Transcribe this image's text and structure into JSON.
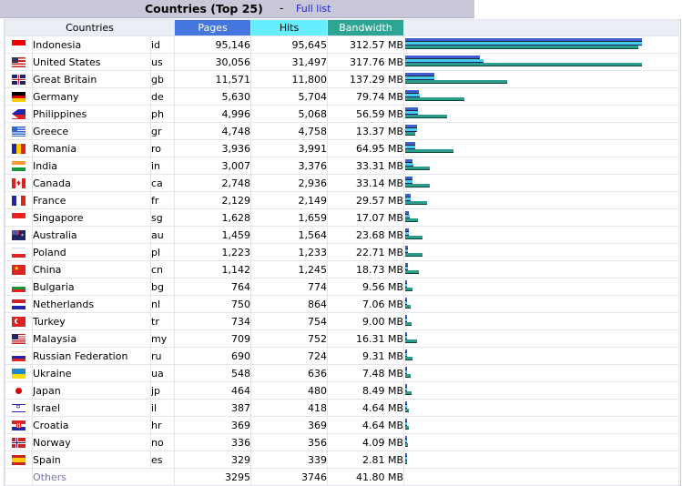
{
  "header": {
    "title": "Countries (Top 25)",
    "separator": "-",
    "full_list_link": "Full list"
  },
  "columns": {
    "countries": "Countries",
    "pages": "Pages",
    "hits": "Hits",
    "bandwidth": "Bandwidth"
  },
  "colors": {
    "pages": "#4477dd",
    "hits": "#66eeff",
    "bandwidth": "#2ea495"
  },
  "rows": [
    {
      "name": "Indonesia",
      "code": "id",
      "pages": "95,146",
      "hits": "95,645",
      "bandwidth": "312.57 MB",
      "flag": "indonesia-flag-icon",
      "p": 95146,
      "h": 95645,
      "b": 312.57
    },
    {
      "name": "United States",
      "code": "us",
      "pages": "30,056",
      "hits": "31,497",
      "bandwidth": "317.76 MB",
      "flag": "usa-flag-icon",
      "p": 30056,
      "h": 31497,
      "b": 317.76
    },
    {
      "name": "Great Britain",
      "code": "gb",
      "pages": "11,571",
      "hits": "11,800",
      "bandwidth": "137.29 MB",
      "flag": "uk-flag-icon",
      "p": 11571,
      "h": 11800,
      "b": 137.29
    },
    {
      "name": "Germany",
      "code": "de",
      "pages": "5,630",
      "hits": "5,704",
      "bandwidth": "79.74 MB",
      "flag": "germany-flag-icon",
      "p": 5630,
      "h": 5704,
      "b": 79.74
    },
    {
      "name": "Philippines",
      "code": "ph",
      "pages": "4,996",
      "hits": "5,068",
      "bandwidth": "56.59 MB",
      "flag": "philippines-flag-icon",
      "p": 4996,
      "h": 5068,
      "b": 56.59
    },
    {
      "name": "Greece",
      "code": "gr",
      "pages": "4,748",
      "hits": "4,758",
      "bandwidth": "13.37 MB",
      "flag": "greece-flag-icon",
      "p": 4748,
      "h": 4758,
      "b": 13.37
    },
    {
      "name": "Romania",
      "code": "ro",
      "pages": "3,936",
      "hits": "3,991",
      "bandwidth": "64.95 MB",
      "flag": "romania-flag-icon",
      "p": 3936,
      "h": 3991,
      "b": 64.95
    },
    {
      "name": "India",
      "code": "in",
      "pages": "3,007",
      "hits": "3,376",
      "bandwidth": "33.31 MB",
      "flag": "india-flag-icon",
      "p": 3007,
      "h": 3376,
      "b": 33.31
    },
    {
      "name": "Canada",
      "code": "ca",
      "pages": "2,748",
      "hits": "2,936",
      "bandwidth": "33.14 MB",
      "flag": "canada-flag-icon",
      "p": 2748,
      "h": 2936,
      "b": 33.14
    },
    {
      "name": "France",
      "code": "fr",
      "pages": "2,129",
      "hits": "2,149",
      "bandwidth": "29.57 MB",
      "flag": "france-flag-icon",
      "p": 2129,
      "h": 2149,
      "b": 29.57
    },
    {
      "name": "Singapore",
      "code": "sg",
      "pages": "1,628",
      "hits": "1,659",
      "bandwidth": "17.07 MB",
      "flag": "singapore-flag-icon",
      "p": 1628,
      "h": 1659,
      "b": 17.07
    },
    {
      "name": "Australia",
      "code": "au",
      "pages": "1,459",
      "hits": "1,564",
      "bandwidth": "23.68 MB",
      "flag": "australia-flag-icon",
      "p": 1459,
      "h": 1564,
      "b": 23.68
    },
    {
      "name": "Poland",
      "code": "pl",
      "pages": "1,223",
      "hits": "1,233",
      "bandwidth": "22.71 MB",
      "flag": "poland-flag-icon",
      "p": 1223,
      "h": 1233,
      "b": 22.71
    },
    {
      "name": "China",
      "code": "cn",
      "pages": "1,142",
      "hits": "1,245",
      "bandwidth": "18.73 MB",
      "flag": "china-flag-icon",
      "p": 1142,
      "h": 1245,
      "b": 18.73
    },
    {
      "name": "Bulgaria",
      "code": "bg",
      "pages": "764",
      "hits": "774",
      "bandwidth": "9.56 MB",
      "flag": "bulgaria-flag-icon",
      "p": 764,
      "h": 774,
      "b": 9.56
    },
    {
      "name": "Netherlands",
      "code": "nl",
      "pages": "750",
      "hits": "864",
      "bandwidth": "7.06 MB",
      "flag": "netherlands-flag-icon",
      "p": 750,
      "h": 864,
      "b": 7.06
    },
    {
      "name": "Turkey",
      "code": "tr",
      "pages": "734",
      "hits": "754",
      "bandwidth": "9.00 MB",
      "flag": "turkey-flag-icon",
      "p": 734,
      "h": 754,
      "b": 9.0
    },
    {
      "name": "Malaysia",
      "code": "my",
      "pages": "709",
      "hits": "752",
      "bandwidth": "16.31 MB",
      "flag": "malaysia-flag-icon",
      "p": 709,
      "h": 752,
      "b": 16.31
    },
    {
      "name": "Russian Federation",
      "code": "ru",
      "pages": "690",
      "hits": "724",
      "bandwidth": "9.31 MB",
      "flag": "russia-flag-icon",
      "p": 690,
      "h": 724,
      "b": 9.31
    },
    {
      "name": "Ukraine",
      "code": "ua",
      "pages": "548",
      "hits": "636",
      "bandwidth": "7.48 MB",
      "flag": "ukraine-flag-icon",
      "p": 548,
      "h": 636,
      "b": 7.48
    },
    {
      "name": "Japan",
      "code": "jp",
      "pages": "464",
      "hits": "480",
      "bandwidth": "8.49 MB",
      "flag": "japan-flag-icon",
      "p": 464,
      "h": 480,
      "b": 8.49
    },
    {
      "name": "Israel",
      "code": "il",
      "pages": "387",
      "hits": "418",
      "bandwidth": "4.64 MB",
      "flag": "israel-flag-icon",
      "p": 387,
      "h": 418,
      "b": 4.64
    },
    {
      "name": "Croatia",
      "code": "hr",
      "pages": "369",
      "hits": "369",
      "bandwidth": "4.64 MB",
      "flag": "croatia-flag-icon",
      "p": 369,
      "h": 369,
      "b": 4.64
    },
    {
      "name": "Norway",
      "code": "no",
      "pages": "336",
      "hits": "356",
      "bandwidth": "4.09 MB",
      "flag": "norway-flag-icon",
      "p": 336,
      "h": 356,
      "b": 4.09
    },
    {
      "name": "Spain",
      "code": "es",
      "pages": "329",
      "hits": "339",
      "bandwidth": "2.81 MB",
      "flag": "spain-flag-icon",
      "p": 329,
      "h": 339,
      "b": 2.81
    }
  ],
  "others": {
    "name": "Others",
    "pages": "3295",
    "hits": "3746",
    "bandwidth": "41.80 MB"
  }
}
